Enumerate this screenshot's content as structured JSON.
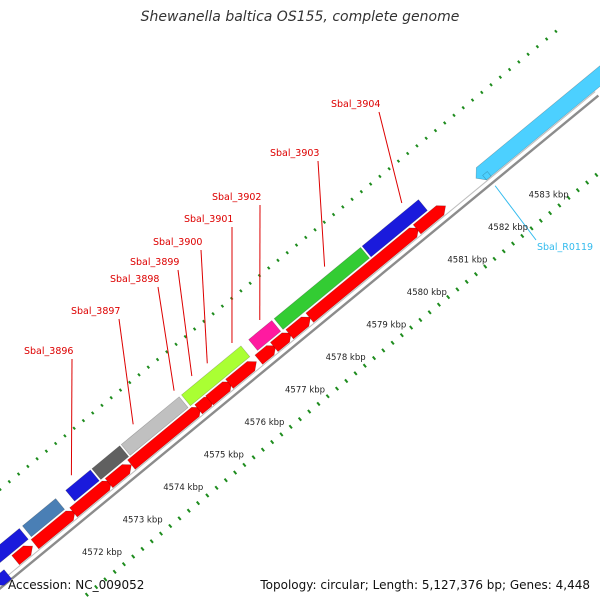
{
  "title": "Shewanella baltica OS155, complete genome",
  "footer": {
    "accession": "Accession: NC_009052",
    "summary": "Topology: circular; Length: 5,127,376 bp; Genes: 4,448"
  },
  "colors": {
    "backbone": "#8c8c8c",
    "forward_ruler": "#1e8c1e",
    "gene_label": "#dd0000",
    "rna_label": "#33bbee",
    "cds": "#ff0000",
    "rna": "#4cd0ff"
  },
  "ruler_ticks": [
    {
      "label": "4572 kbp",
      "pos": 4572
    },
    {
      "label": "4573 kbp",
      "pos": 4573
    },
    {
      "label": "4574 kbp",
      "pos": 4574
    },
    {
      "label": "4575 kbp",
      "pos": 4575
    },
    {
      "label": "4576 kbp",
      "pos": 4576
    },
    {
      "label": "4577 kbp",
      "pos": 4577
    },
    {
      "label": "4578 kbp",
      "pos": 4578
    },
    {
      "label": "4579 kbp",
      "pos": 4579
    },
    {
      "label": "4580 kbp",
      "pos": 4580
    },
    {
      "label": "4581 kbp",
      "pos": 4581
    },
    {
      "label": "4582 kbp",
      "pos": 4582
    },
    {
      "label": "4583 kbp",
      "pos": 4583
    }
  ],
  "gene_labels": [
    {
      "name": "Sbal_3896",
      "color": "#dd0000"
    },
    {
      "name": "Sbal_3897",
      "color": "#dd0000"
    },
    {
      "name": "Sbal_3898",
      "color": "#dd0000"
    },
    {
      "name": "Sbal_3899",
      "color": "#dd0000"
    },
    {
      "name": "Sbal_3900",
      "color": "#dd0000"
    },
    {
      "name": "Sbal_3901",
      "color": "#dd0000"
    },
    {
      "name": "Sbal_3902",
      "color": "#dd0000"
    },
    {
      "name": "Sbal_3903",
      "color": "#dd0000"
    },
    {
      "name": "Sbal_3904",
      "color": "#dd0000"
    },
    {
      "name": "Sbal_R0119",
      "color": "#33bbee"
    }
  ],
  "cog_blocks": [
    {
      "color": "#1a1adc"
    },
    {
      "color": "#4a7fb5"
    },
    {
      "color": "#1a1adc"
    },
    {
      "color": "#606060"
    },
    {
      "color": "#c0c0c0"
    },
    {
      "color": "#aaff33"
    },
    {
      "color": "#ff1aa0"
    },
    {
      "color": "#33cc33"
    },
    {
      "color": "#1a1adc"
    }
  ]
}
